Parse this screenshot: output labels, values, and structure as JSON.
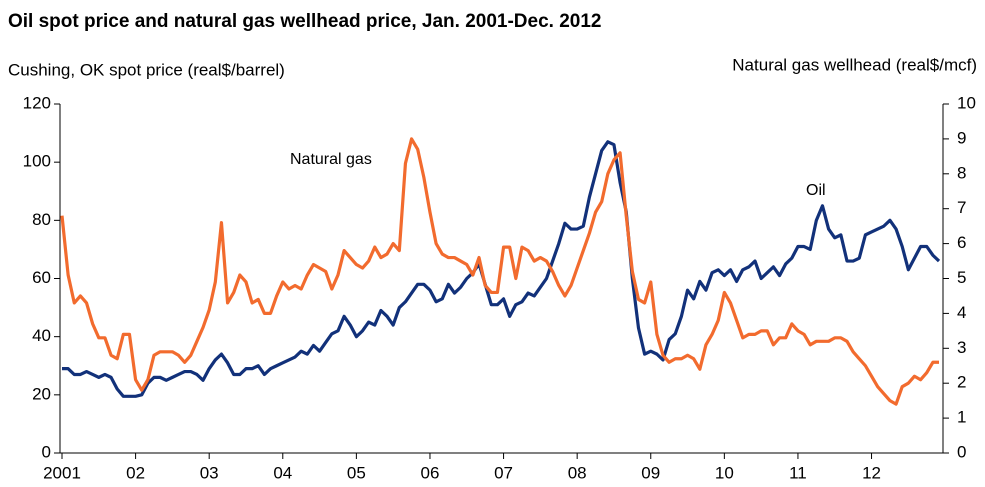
{
  "chart_data": {
    "type": "line",
    "title": "Oil spot price and natural gas wellhead price, Jan. 2001-Dec. 2012",
    "y_label": "Cushing, OK spot price (real$/barrel)",
    "y2_label": "Natural gas wellhead (real$/mcf)",
    "annotations": [
      "Natural gas",
      "Oil"
    ],
    "categories": [
      "2001",
      null,
      null,
      null,
      null,
      null,
      null,
      null,
      null,
      null,
      null,
      null,
      "02",
      null,
      null,
      null,
      null,
      null,
      null,
      null,
      null,
      null,
      null,
      null,
      "03",
      null,
      null,
      null,
      null,
      null,
      null,
      null,
      null,
      null,
      null,
      null,
      "04",
      null,
      null,
      null,
      null,
      null,
      null,
      null,
      null,
      null,
      null,
      null,
      "05",
      null,
      null,
      null,
      null,
      null,
      null,
      null,
      null,
      null,
      null,
      null,
      "06",
      null,
      null,
      null,
      null,
      null,
      null,
      null,
      null,
      null,
      null,
      null,
      "07",
      null,
      null,
      null,
      null,
      null,
      null,
      null,
      null,
      null,
      null,
      null,
      "08",
      null,
      null,
      null,
      null,
      null,
      null,
      null,
      null,
      null,
      null,
      null,
      "09",
      null,
      null,
      null,
      null,
      null,
      null,
      null,
      null,
      null,
      null,
      null,
      "10",
      null,
      null,
      null,
      null,
      null,
      null,
      null,
      null,
      null,
      null,
      null,
      "11",
      null,
      null,
      null,
      null,
      null,
      null,
      null,
      null,
      null,
      null,
      null,
      "12",
      null,
      null,
      null,
      null,
      null,
      null,
      null,
      null,
      null,
      null,
      null
    ],
    "series": [
      {
        "name": "Oil",
        "color": "#12317a",
        "axis": "y",
        "values": [
          29,
          29,
          27,
          27,
          28,
          27,
          26,
          27,
          26,
          22,
          19.5,
          19.5,
          19.5,
          20,
          24,
          26,
          26,
          25,
          26,
          27,
          28,
          28,
          27,
          25,
          29,
          32,
          34,
          31,
          27,
          27,
          29,
          29,
          30,
          27,
          29,
          30,
          31,
          32,
          33,
          35,
          34,
          37,
          35,
          38,
          41,
          42,
          47,
          44,
          40,
          42,
          45,
          44,
          49,
          47,
          44,
          50,
          52,
          55,
          58,
          58,
          56,
          52,
          53,
          58,
          55,
          57,
          60,
          62,
          65,
          58,
          51,
          51,
          53,
          47,
          51,
          52,
          55,
          54,
          57,
          60,
          66,
          72,
          79,
          77,
          77,
          78,
          88,
          96,
          104,
          107,
          106,
          93,
          83,
          60,
          43,
          34,
          35,
          34,
          32,
          39,
          41,
          47,
          56,
          53,
          59,
          56,
          62,
          63,
          61,
          63,
          59,
          63,
          64,
          66,
          60,
          62,
          64,
          61,
          65,
          67,
          71,
          71,
          70,
          80,
          85,
          77,
          74,
          75,
          66,
          66,
          67,
          75,
          76,
          77,
          78,
          80,
          77,
          71,
          63,
          67,
          71,
          71,
          68,
          66
        ]
      },
      {
        "name": "Natural gas",
        "color": "#f26b2e",
        "axis": "y2",
        "values": [
          6.8,
          5.1,
          4.3,
          4.5,
          4.3,
          3.7,
          3.3,
          3.3,
          2.8,
          2.7,
          3.4,
          3.4,
          2.1,
          1.8,
          2.1,
          2.8,
          2.9,
          2.9,
          2.9,
          2.8,
          2.6,
          2.8,
          3.2,
          3.6,
          4.1,
          4.9,
          6.6,
          4.3,
          4.6,
          5.1,
          4.9,
          4.3,
          4.4,
          4.0,
          4.0,
          4.5,
          4.9,
          4.7,
          4.8,
          4.7,
          5.1,
          5.4,
          5.3,
          5.2,
          4.7,
          5.1,
          5.8,
          5.6,
          5.4,
          5.3,
          5.5,
          5.9,
          5.6,
          5.7,
          6.0,
          5.8,
          8.3,
          9.0,
          8.7,
          7.9,
          6.9,
          6.0,
          5.7,
          5.6,
          5.6,
          5.5,
          5.4,
          5.1,
          5.6,
          4.8,
          4.6,
          4.6,
          5.9,
          5.9,
          5.0,
          5.9,
          5.8,
          5.5,
          5.6,
          5.5,
          5.2,
          4.8,
          4.5,
          4.8,
          5.3,
          5.8,
          6.3,
          6.9,
          7.2,
          8.0,
          8.4,
          8.6,
          6.8,
          5.2,
          4.4,
          4.3,
          4.9,
          3.4,
          2.8,
          2.6,
          2.7,
          2.7,
          2.8,
          2.7,
          2.4,
          3.1,
          3.4,
          3.8,
          4.6,
          4.3,
          3.8,
          3.3,
          3.4,
          3.4,
          3.5,
          3.5,
          3.1,
          3.3,
          3.3,
          3.7,
          3.5,
          3.4,
          3.1,
          3.2,
          3.2,
          3.2,
          3.3,
          3.3,
          3.2,
          2.9,
          2.7,
          2.5,
          2.2,
          1.9,
          1.7,
          1.5,
          1.4,
          1.9,
          2.0,
          2.2,
          2.1,
          2.3,
          2.6,
          2.6
        ]
      }
    ],
    "ylim": [
      0,
      120
    ],
    "yticks": [
      0,
      20,
      40,
      60,
      80,
      100,
      120
    ],
    "y2lim": [
      0,
      10
    ],
    "y2ticks": [
      0,
      1,
      2,
      3,
      4,
      5,
      6,
      7,
      8,
      9,
      10
    ]
  }
}
